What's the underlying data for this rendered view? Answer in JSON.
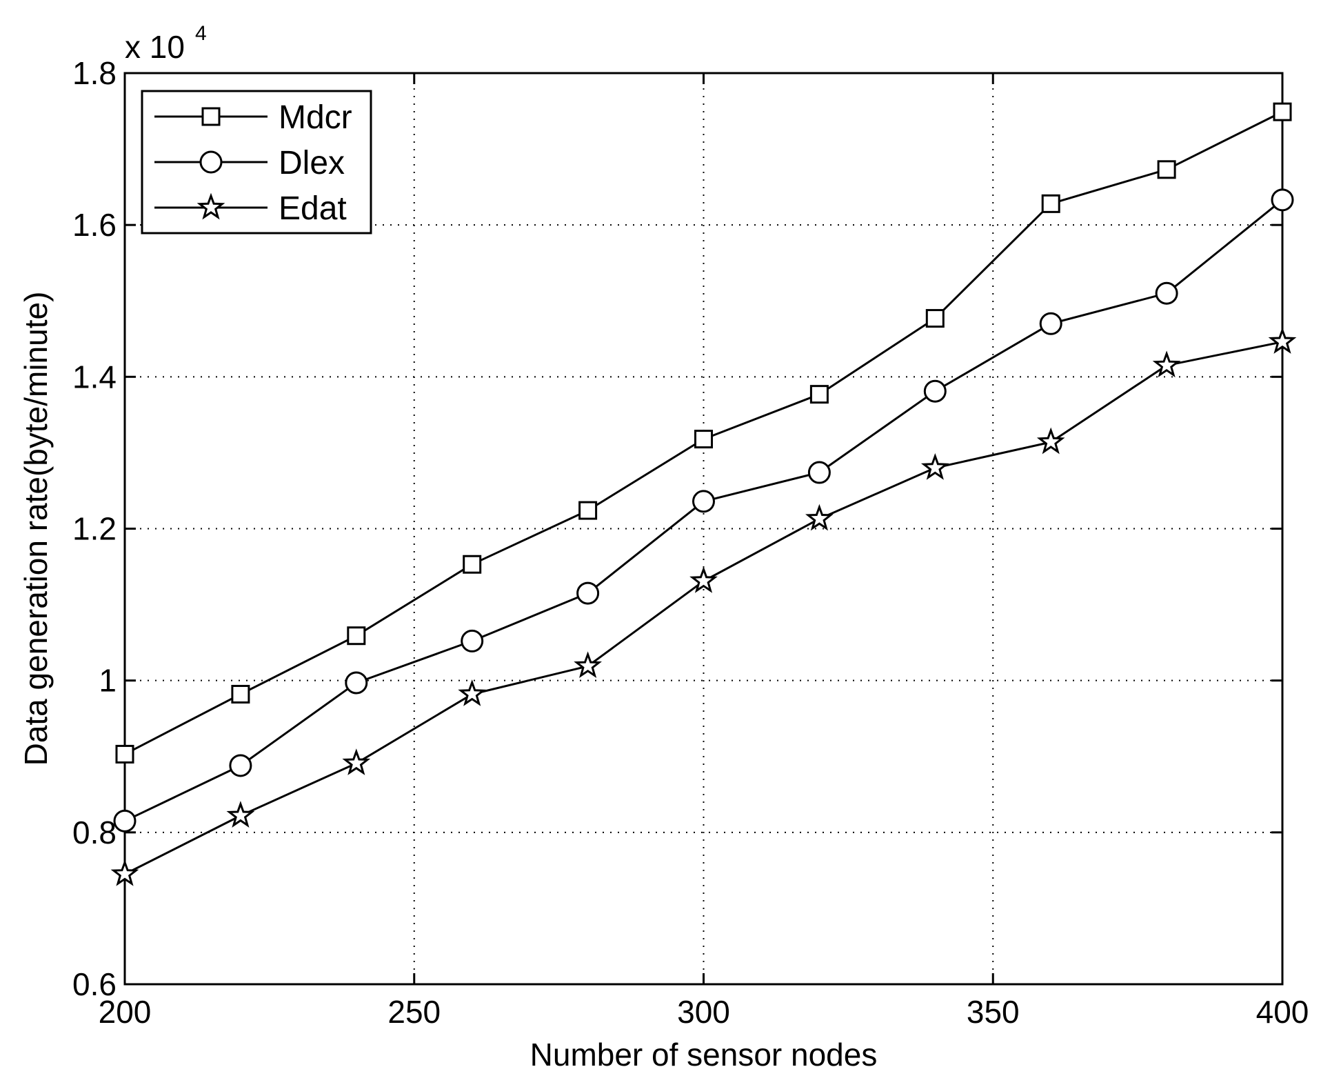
{
  "chart_data": {
    "type": "line",
    "xlabel": "Number of sensor nodes",
    "ylabel": "Data generation rate(byte/minute)",
    "y_multiplier": {
      "base": "x 10",
      "exponent": "4"
    },
    "xlim": [
      200,
      400
    ],
    "ylim": [
      0.6,
      1.8
    ],
    "x_ticks": [
      200,
      250,
      300,
      350,
      400
    ],
    "x_tick_labels": [
      "200",
      "250",
      "300",
      "350",
      "400"
    ],
    "y_ticks": [
      0.6,
      0.8,
      1.0,
      1.2,
      1.4,
      1.6,
      1.8
    ],
    "y_tick_labels": [
      "0.6",
      "0.8",
      "1",
      "1.2",
      "1.4",
      "1.6",
      "1.8"
    ],
    "grid": true,
    "legend_position": "top-left",
    "x": [
      200,
      220,
      240,
      260,
      280,
      300,
      320,
      340,
      360,
      380,
      400
    ],
    "series": [
      {
        "name": "Mdcr",
        "marker": "square",
        "color": "#000000",
        "values": [
          0.903,
          0.982,
          1.059,
          1.153,
          1.224,
          1.318,
          1.377,
          1.477,
          1.628,
          1.673,
          1.749
        ]
      },
      {
        "name": "Dlex",
        "marker": "circle",
        "color": "#000000",
        "values": [
          0.815,
          0.888,
          0.997,
          1.052,
          1.115,
          1.236,
          1.274,
          1.381,
          1.47,
          1.51,
          1.633
        ]
      },
      {
        "name": "Edat",
        "marker": "star",
        "color": "#000000",
        "values": [
          0.745,
          0.822,
          0.891,
          0.982,
          1.019,
          1.131,
          1.213,
          1.28,
          1.314,
          1.415,
          1.446
        ]
      }
    ]
  }
}
